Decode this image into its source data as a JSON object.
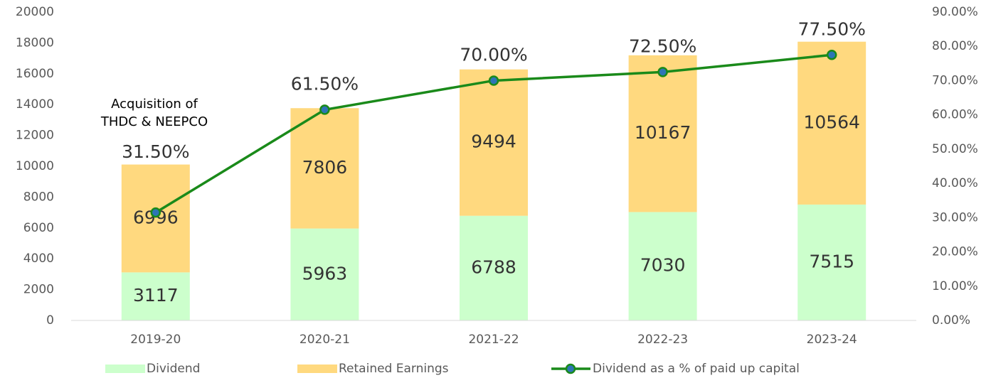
{
  "chart_data": {
    "type": "bar",
    "categories": [
      "2019-20",
      "2020-21",
      "2021-22",
      "2022-23",
      "2023-24"
    ],
    "stacked": true,
    "series": [
      {
        "name": "Dividend",
        "color": "#ccffcc",
        "values": [
          3117,
          5963,
          6788,
          7030,
          7515
        ]
      },
      {
        "name": "Retained Earnings",
        "color": "#ffd97f",
        "values": [
          6996,
          7806,
          9494,
          10167,
          10564
        ]
      },
      {
        "name": "Dividend as a % of paid up capital",
        "type": "line",
        "axis": "y2",
        "color": "#1a8a1a",
        "marker_color": "#2e75b6",
        "values": [
          31.5,
          61.5,
          70,
          72.5,
          77.5
        ],
        "value_labels": [
          "31.50%",
          "61.50%",
          "70.00%",
          "72.50%",
          "77.50%"
        ]
      }
    ],
    "annotation": [
      "Acquisition of",
      "THDC & NEEPCO"
    ],
    "ylim": [
      0,
      20000
    ],
    "yticks": [
      0,
      2000,
      4000,
      6000,
      8000,
      10000,
      12000,
      14000,
      16000,
      18000,
      20000
    ],
    "y2lim": [
      0,
      90
    ],
    "y2ticks": [
      {
        "value": 0,
        "label": "0.00%"
      },
      {
        "value": 10,
        "label": "10.00%"
      },
      {
        "value": 20,
        "label": "20.00%"
      },
      {
        "value": 30,
        "label": "30.00%"
      },
      {
        "value": 40,
        "label": "40.00%"
      },
      {
        "value": 50,
        "label": "50.00%"
      },
      {
        "value": 60,
        "label": "60.00%"
      },
      {
        "value": 70,
        "label": "70.00%"
      },
      {
        "value": 80,
        "label": "80.00%"
      },
      {
        "value": 90,
        "label": "90.00%"
      }
    ],
    "legend": "bottom",
    "grid": false
  }
}
